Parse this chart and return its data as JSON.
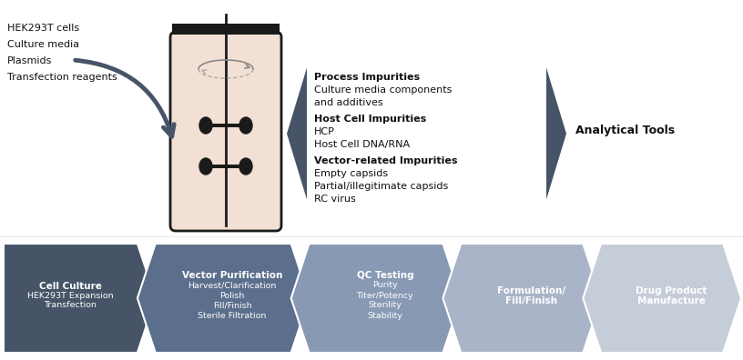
{
  "background_color": "#ffffff",
  "figsize": [
    8.16,
    3.96
  ],
  "dpi": 100,
  "input_labels": [
    "HEK293T cells",
    "Culture media",
    "Plasmids",
    "Transfection reagents"
  ],
  "impurities_sections": [
    {
      "title": "Process Impurities",
      "lines": [
        "Culture media components",
        "and additives"
      ]
    },
    {
      "title": "Host Cell Impurities",
      "lines": [
        "HCP",
        "Host Cell DNA/RNA"
      ]
    },
    {
      "title": "Vector-related Impurities",
      "lines": [
        "Empty capsids",
        "Partial/illegitimate capsids",
        "RC virus"
      ]
    }
  ],
  "analytical_tools_label": "Analytical Tools",
  "process_steps": [
    {
      "title": "Cell Culture",
      "subtitle": [
        "HEK293T Expansion",
        "Transfection"
      ],
      "color": "#475467",
      "first": true
    },
    {
      "title": "Vector Purification",
      "subtitle": [
        "Harvest/Clarification",
        "Polish",
        "Fill/Finish",
        "Sterile Filtration"
      ],
      "color": "#5b6e8c",
      "first": false
    },
    {
      "title": "QC Testing",
      "subtitle": [
        "Purity",
        "Titer/Potency",
        "Sterility",
        "Stability"
      ],
      "color": "#8899b4",
      "first": false
    },
    {
      "title": "Formulation/\nFill/Finish",
      "subtitle": [],
      "color": "#aab4c8",
      "first": false
    },
    {
      "title": "Drug Product\nManufacture",
      "subtitle": [],
      "color": "#c5cdd9",
      "first": false
    }
  ],
  "bioreactor_fill_color": "#f2e0d5",
  "bioreactor_outline_color": "#1a1a1a",
  "arrow_color": "#475467",
  "left_chevron_color": "#475467",
  "right_chevron_color": "#475467",
  "text_dark": "#111111",
  "text_white": "#ffffff"
}
